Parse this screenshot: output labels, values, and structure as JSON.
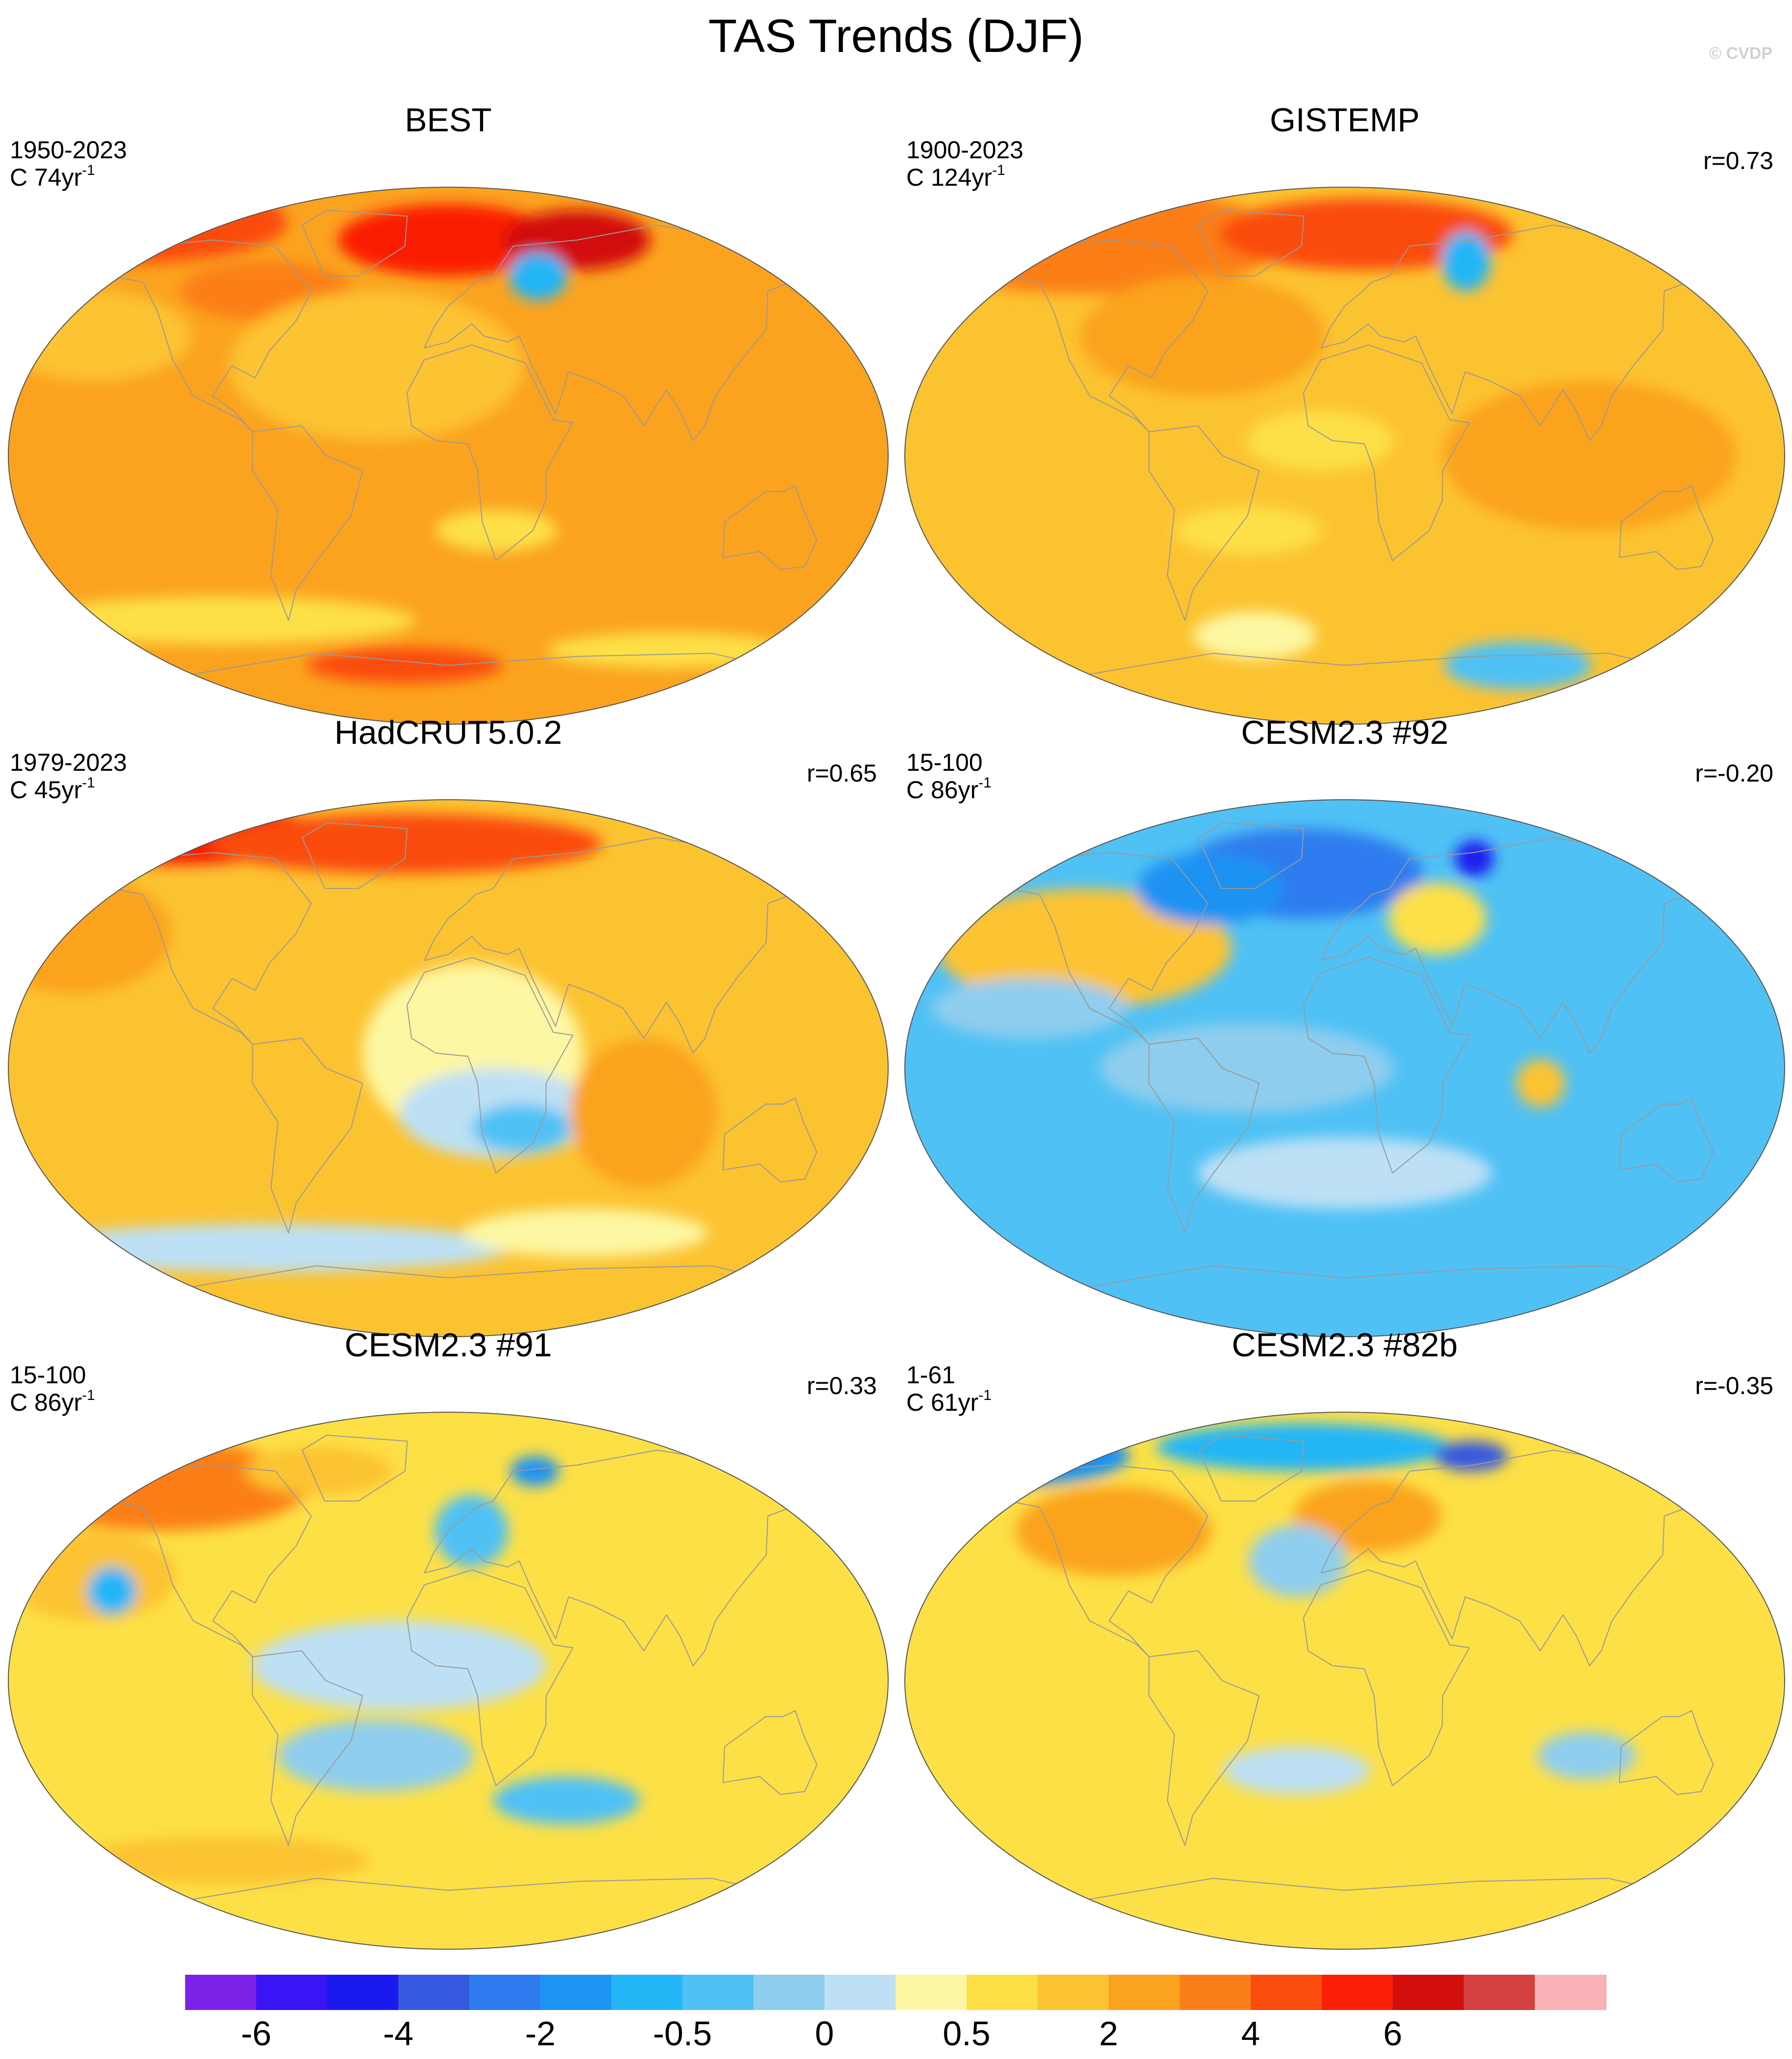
{
  "title": "TAS Trends (DJF)",
  "credit": "© CVDP",
  "palette": {
    "land": "#9a9a9a",
    "outline": "#555555",
    "bins": [
      "#7d22e8",
      "#3b14f5",
      "#1a1aef",
      "#3459e0",
      "#2e7bef",
      "#1d93f3",
      "#24b6f7",
      "#4fc1f5",
      "#8fcdee",
      "#bde0f5",
      "#fdf7a3",
      "#fde046",
      "#fcc331",
      "#fba31f",
      "#fb7f18",
      "#fa4c0c",
      "#fa1f05",
      "#d20f0d",
      "#d44040",
      "#fab4b9"
    ]
  },
  "colorbar": {
    "labels": [
      "-6",
      "-4",
      "-2",
      "-0.5",
      "0",
      "0.5",
      "2",
      "4",
      "6"
    ],
    "label_boundaries": [
      1,
      3,
      5,
      7,
      9,
      11,
      13,
      15,
      17
    ]
  },
  "panels": [
    {
      "title": "BEST",
      "period": "1950-2023",
      "count_prefix": "C 74yr",
      "count_sup": "-1",
      "r": "",
      "base": 13,
      "blobs": [
        {
          "lon": -160,
          "lat": 78,
          "rx": 70,
          "ry": 14,
          "bin": 15
        },
        {
          "lon": 0,
          "lat": 72,
          "rx": 45,
          "ry": 12,
          "bin": 16
        },
        {
          "lon": 60,
          "lat": 72,
          "rx": 30,
          "ry": 10,
          "bin": 17
        },
        {
          "lon": -150,
          "lat": 40,
          "rx": 40,
          "ry": 15,
          "bin": 12
        },
        {
          "lon": -80,
          "lat": 55,
          "rx": 35,
          "ry": 10,
          "bin": 14
        },
        {
          "lon": 40,
          "lat": 60,
          "rx": 12,
          "ry": 8,
          "bin": 6
        },
        {
          "lon": -30,
          "lat": 30,
          "rx": 60,
          "ry": 25,
          "bin": 12
        },
        {
          "lon": 20,
          "lat": -25,
          "rx": 25,
          "ry": 7,
          "bin": 11
        },
        {
          "lon": -20,
          "lat": -70,
          "rx": 40,
          "ry": 6,
          "bin": 15
        },
        {
          "lon": -100,
          "lat": -55,
          "rx": 80,
          "ry": 8,
          "bin": 11
        },
        {
          "lon": 100,
          "lat": -65,
          "rx": 50,
          "ry": 6,
          "bin": 11
        }
      ]
    },
    {
      "title": "GISTEMP",
      "period": "1900-2023",
      "count_prefix": "C 124yr",
      "count_sup": "-1",
      "r": "r=0.73",
      "base": 12,
      "blobs": [
        {
          "lon": -120,
          "lat": 72,
          "rx": 80,
          "ry": 18,
          "bin": 14
        },
        {
          "lon": 10,
          "lat": 74,
          "rx": 60,
          "ry": 12,
          "bin": 15
        },
        {
          "lon": 55,
          "lat": 65,
          "rx": 10,
          "ry": 10,
          "bin": 6
        },
        {
          "lon": -60,
          "lat": 40,
          "rx": 50,
          "ry": 20,
          "bin": 13
        },
        {
          "lon": 100,
          "lat": 0,
          "rx": 60,
          "ry": 25,
          "bin": 13
        },
        {
          "lon": -10,
          "lat": 5,
          "rx": 30,
          "ry": 10,
          "bin": 11
        },
        {
          "lon": -40,
          "lat": -25,
          "rx": 30,
          "ry": 8,
          "bin": 11
        },
        {
          "lon": -40,
          "lat": -60,
          "rx": 25,
          "ry": 8,
          "bin": 10
        },
        {
          "lon": 80,
          "lat": -70,
          "rx": 30,
          "ry": 8,
          "bin": 7
        }
      ]
    },
    {
      "title": "HadCRUT5.0.2",
      "period": "1979-2023",
      "count_prefix": "C 45yr",
      "count_sup": "-1",
      "r": "r=0.65",
      "base": 12,
      "blobs": [
        {
          "lon": -130,
          "lat": 78,
          "rx": 60,
          "ry": 10,
          "bin": 16
        },
        {
          "lon": -20,
          "lat": 75,
          "rx": 80,
          "ry": 10,
          "bin": 15
        },
        {
          "lon": -160,
          "lat": 45,
          "rx": 40,
          "ry": 20,
          "bin": 13
        },
        {
          "lon": 10,
          "lat": 5,
          "rx": 45,
          "ry": 30,
          "bin": 10
        },
        {
          "lon": 20,
          "lat": -15,
          "rx": 40,
          "ry": 15,
          "bin": 9
        },
        {
          "lon": 30,
          "lat": -20,
          "rx": 20,
          "ry": 8,
          "bin": 7
        },
        {
          "lon": -80,
          "lat": -60,
          "rx": 100,
          "ry": 8,
          "bin": 9
        },
        {
          "lon": 60,
          "lat": -55,
          "rx": 50,
          "ry": 8,
          "bin": 10
        },
        {
          "lon": 80,
          "lat": -15,
          "rx": 30,
          "ry": 25,
          "bin": 13
        }
      ]
    },
    {
      "title": "CESM2.3 #92",
      "period": "15-100",
      "count_prefix": "C 86yr",
      "count_sup": "-1",
      "r": "r=-0.20",
      "base": 7,
      "blobs": [
        {
          "lon": -20,
          "lat": 65,
          "rx": 50,
          "ry": 15,
          "bin": 4
        },
        {
          "lon": -110,
          "lat": 40,
          "rx": 60,
          "ry": 20,
          "bin": 12
        },
        {
          "lon": 40,
          "lat": 50,
          "rx": 20,
          "ry": 12,
          "bin": 11
        },
        {
          "lon": -60,
          "lat": 60,
          "rx": 30,
          "ry": 12,
          "bin": 5
        },
        {
          "lon": 60,
          "lat": 70,
          "rx": 8,
          "ry": 6,
          "bin": 2
        },
        {
          "lon": 80,
          "lat": -5,
          "rx": 10,
          "ry": 8,
          "bin": 12
        },
        {
          "lon": -40,
          "lat": 0,
          "rx": 60,
          "ry": 15,
          "bin": 8
        },
        {
          "lon": 0,
          "lat": -35,
          "rx": 60,
          "ry": 12,
          "bin": 9
        },
        {
          "lon": -130,
          "lat": 20,
          "rx": 40,
          "ry": 10,
          "bin": 8
        }
      ]
    },
    {
      "title": "CESM2.3 #91",
      "period": "15-100",
      "count_prefix": "C 86yr",
      "count_sup": "-1",
      "r": "r=0.33",
      "base": 11,
      "blobs": [
        {
          "lon": -130,
          "lat": 65,
          "rx": 60,
          "ry": 15,
          "bin": 14
        },
        {
          "lon": -150,
          "lat": 35,
          "rx": 35,
          "ry": 15,
          "bin": 12
        },
        {
          "lon": -140,
          "lat": 30,
          "rx": 10,
          "ry": 8,
          "bin": 6
        },
        {
          "lon": -60,
          "lat": 70,
          "rx": 30,
          "ry": 8,
          "bin": 12
        },
        {
          "lon": 40,
          "lat": 70,
          "rx": 10,
          "ry": 5,
          "bin": 5
        },
        {
          "lon": 10,
          "lat": 50,
          "rx": 15,
          "ry": 12,
          "bin": 7
        },
        {
          "lon": -20,
          "lat": 5,
          "rx": 60,
          "ry": 15,
          "bin": 9
        },
        {
          "lon": -30,
          "lat": -25,
          "rx": 40,
          "ry": 12,
          "bin": 8
        },
        {
          "lon": 50,
          "lat": -40,
          "rx": 30,
          "ry": 8,
          "bin": 7
        },
        {
          "lon": -100,
          "lat": -60,
          "rx": 60,
          "ry": 8,
          "bin": 12
        }
      ]
    },
    {
      "title": "CESM2.3 #82b",
      "period": "1-61",
      "count_prefix": "C 61yr",
      "count_sup": "-1",
      "r": "r=-0.35",
      "base": 11,
      "blobs": [
        {
          "lon": -160,
          "lat": 75,
          "rx": 50,
          "ry": 10,
          "bin": 5
        },
        {
          "lon": -170,
          "lat": 78,
          "rx": 30,
          "ry": 7,
          "bin": 3
        },
        {
          "lon": -20,
          "lat": 78,
          "rx": 60,
          "ry": 8,
          "bin": 6
        },
        {
          "lon": 60,
          "lat": 75,
          "rx": 15,
          "ry": 5,
          "bin": 3
        },
        {
          "lon": 10,
          "lat": 55,
          "rx": 30,
          "ry": 12,
          "bin": 13
        },
        {
          "lon": -100,
          "lat": 50,
          "rx": 40,
          "ry": 15,
          "bin": 13
        },
        {
          "lon": -20,
          "lat": 40,
          "rx": 20,
          "ry": 12,
          "bin": 8
        },
        {
          "lon": 100,
          "lat": -25,
          "rx": 20,
          "ry": 8,
          "bin": 8
        },
        {
          "lon": -20,
          "lat": -30,
          "rx": 30,
          "ry": 8,
          "bin": 9
        }
      ]
    }
  ]
}
